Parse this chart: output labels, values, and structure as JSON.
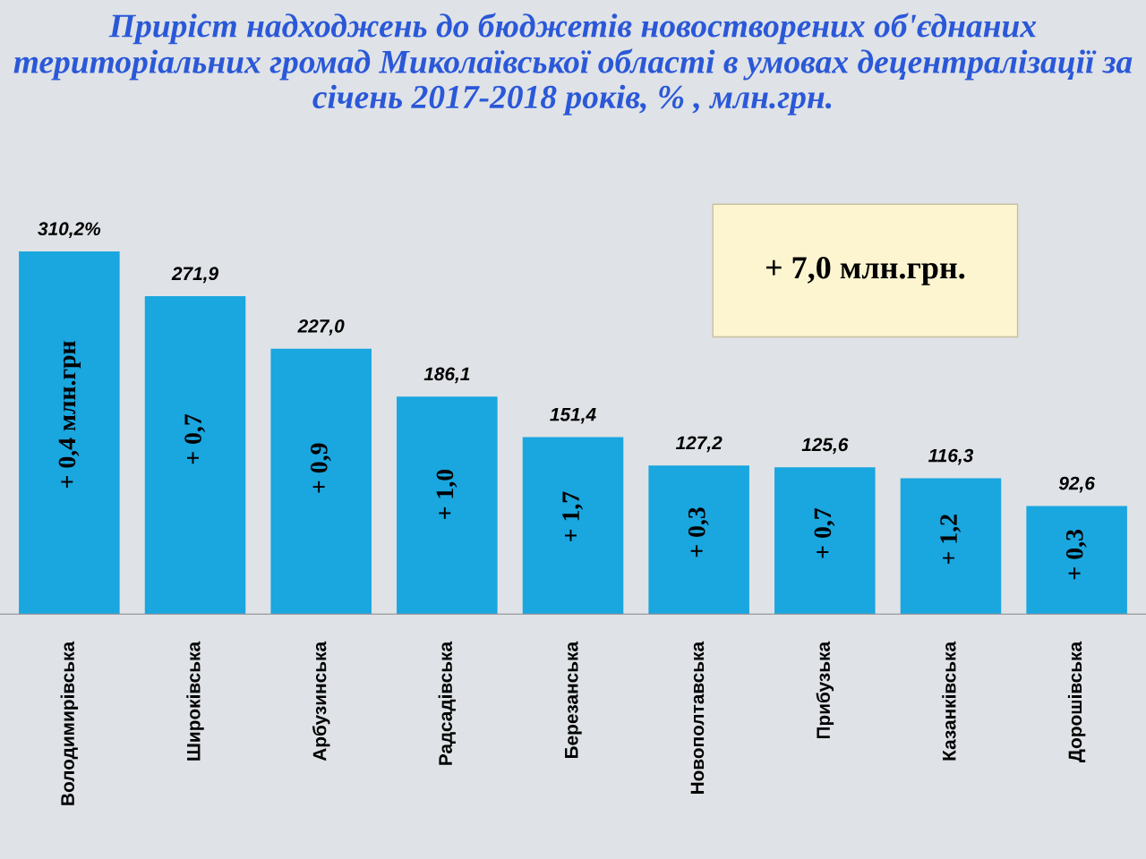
{
  "chart_data": {
    "type": "bar",
    "title": "Приріст надходжень до бюджетів новостворених об'єднаних територіальних громад Миколаївської області в умовах децентралізації за січень 2017-2018 років, % , млн.грн.",
    "categories": [
      "Володимирівська",
      "Широківська",
      "Арбузинська",
      "Радсадівська",
      "Березанська",
      "Новополтавська",
      "Прибузька",
      "Казанківська",
      "Дорошівська"
    ],
    "values": [
      310.2,
      271.9,
      227.0,
      186.1,
      151.4,
      127.2,
      125.6,
      116.3,
      92.6
    ],
    "value_labels": [
      "310,2%",
      "271,9",
      "227,0",
      "186,1",
      "151,4",
      "127,2",
      "125,6",
      "116,3",
      "92,6"
    ],
    "color": "#1aa6df",
    "grid": false,
    "legend": false,
    "annotations": [
      "+ 0,4 млн.грн",
      "+ 0,7",
      "+ 0,9",
      "+ 1,0",
      "+ 1,7",
      "+ 0,3",
      "+ 0,7",
      "+ 1,2",
      "+ 0,3",
      "+ 7,0 млн.грн."
    ]
  }
}
